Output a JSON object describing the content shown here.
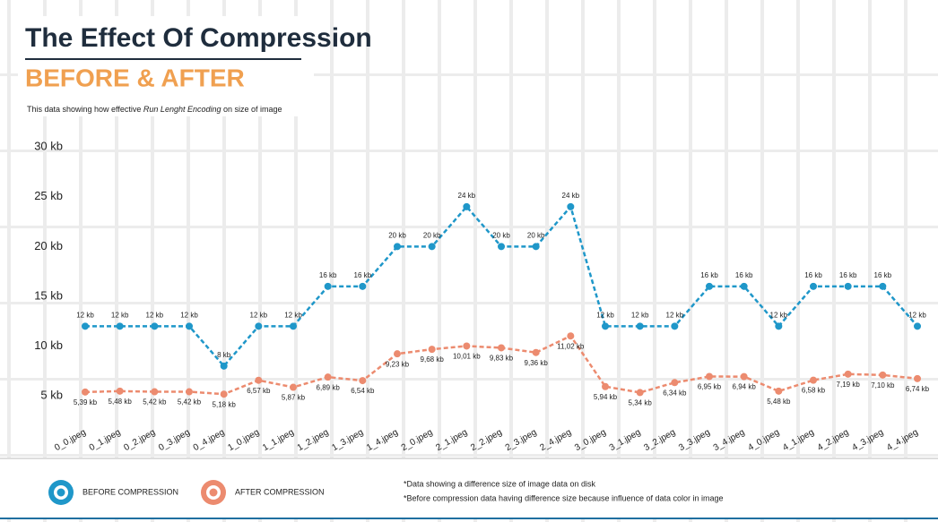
{
  "chart_data": {
    "type": "line",
    "title": "The Effect Of Compression",
    "subtitle": "BEFORE & AFTER",
    "description": [
      "This data showing how effective ",
      "Run Lenght Encoding",
      " on size of image"
    ],
    "categories": [
      "0_0.jpeg",
      "0_1.jpeg",
      "0_2.jpeg",
      "0_3.jpeg",
      "0_4.jpeg",
      "1_0.jpeg",
      "1_1.jpeg",
      "1_2.jpeg",
      "1_3.jpeg",
      "1_4.jpeg",
      "2_0.jpeg",
      "2_1.jpeg",
      "2_2.jpeg",
      "2_3.jpeg",
      "2_4.jpeg",
      "3_0.jpeg",
      "3_1.jpeg",
      "3_2.jpeg",
      "3_3.jpeg",
      "3_4.jpeg",
      "4_0.jpeg",
      "4_1.jpeg",
      "4_2.jpeg",
      "4_3.jpeg",
      "4_4.jpeg"
    ],
    "series": [
      {
        "name": "BEFORE COMPRESSION",
        "color": "#1f97c9",
        "values": [
          12,
          12,
          12,
          12,
          8,
          12,
          12,
          16,
          16,
          20,
          20,
          24,
          20,
          20,
          24,
          12,
          12,
          12,
          16,
          16,
          12,
          16,
          16,
          16,
          12
        ],
        "value_labels": [
          "12 kb",
          "12 kb",
          "12 kb",
          "12 kb",
          "8 kb",
          "12 kb",
          "12 kb",
          "16 kb",
          "16 kb",
          "20 kb",
          "20 kb",
          "24 kb",
          "20 kb",
          "20 kb",
          "24 kb",
          "12 kb",
          "12 kb",
          "12 kb",
          "16 kb",
          "16 kb",
          "12 kb",
          "16 kb",
          "16 kb",
          "16 kb",
          "12 kb"
        ]
      },
      {
        "name": "AFTER COMPRESSION",
        "color": "#ec8b6f",
        "values": [
          5.39,
          5.48,
          5.42,
          5.42,
          5.18,
          6.57,
          5.87,
          6.89,
          6.54,
          9.23,
          9.68,
          10.01,
          9.83,
          9.36,
          11.02,
          5.94,
          5.34,
          6.34,
          6.95,
          6.94,
          5.48,
          6.58,
          7.19,
          7.1,
          6.74
        ],
        "value_labels": [
          "5,39 kb",
          "5,48 kb",
          "5,42 kb",
          "5,42 kb",
          "5,18 kb",
          "6,57 kb",
          "5,87 kb",
          "6,89 kb",
          "6,54 kb",
          "9,23 kb",
          "9,68 kb",
          "10,01 kb",
          "9,83 kb",
          "9,36 kb",
          "11,02 kb",
          "5,94 kb",
          "5,34 kb",
          "6,34 kb",
          "6,95 kb",
          "6,94 kb",
          "5,48 kb",
          "6,58 kb",
          "7,19 kb",
          "7,10 kb",
          "6,74 kb"
        ]
      }
    ],
    "ylim": [
      2.5,
      31
    ],
    "yticks": [
      {
        "value": 5,
        "label": "5 kb"
      },
      {
        "value": 10,
        "label": "10 kb"
      },
      {
        "value": 15,
        "label": "15 kb"
      },
      {
        "value": 20,
        "label": "20 kb"
      },
      {
        "value": 25,
        "label": "25 kb"
      },
      {
        "value": 30,
        "label": "30 kb"
      }
    ],
    "notes": [
      "*Data showing a difference size of image data on disk",
      "*Before compression data having difference size because influence of data color in image"
    ]
  }
}
